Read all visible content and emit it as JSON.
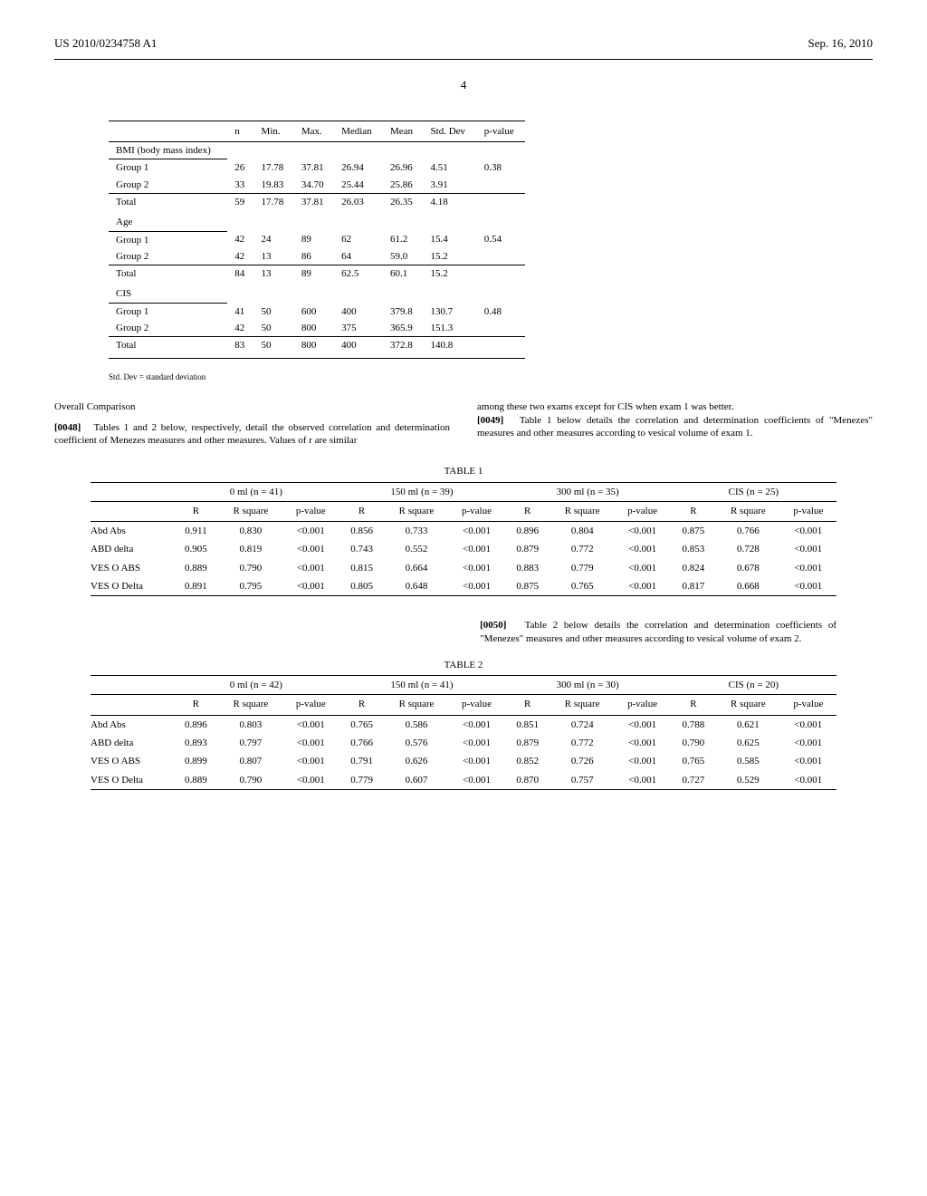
{
  "header": {
    "left": "US 2010/0234758 A1",
    "right": "Sep. 16, 2010"
  },
  "page_number": "4",
  "top_table": {
    "columns": [
      "",
      "n",
      "Min.",
      "Max.",
      "Median",
      "Mean",
      "Std. Dev",
      "p-value"
    ],
    "sections": [
      {
        "title": "BMI (body mass index)",
        "rows": [
          [
            "Group 1",
            "26",
            "17.78",
            "37.81",
            "26.94",
            "26.96",
            "4.51",
            "0.38"
          ],
          [
            "Group 2",
            "33",
            "19.83",
            "34.70",
            "25.44",
            "25.86",
            "3.91",
            ""
          ]
        ],
        "total": [
          "Total",
          "59",
          "17.78",
          "37.81",
          "26.03",
          "26.35",
          "4.18",
          ""
        ]
      },
      {
        "title": "Age",
        "rows": [
          [
            "Group 1",
            "42",
            "24",
            "89",
            "62",
            "61.2",
            "15.4",
            "0.54"
          ],
          [
            "Group 2",
            "42",
            "13",
            "86",
            "64",
            "59.0",
            "15.2",
            ""
          ]
        ],
        "total": [
          "Total",
          "84",
          "13",
          "89",
          "62.5",
          "60.1",
          "15.2",
          ""
        ]
      },
      {
        "title": "CIS",
        "rows": [
          [
            "Group 1",
            "41",
            "50",
            "600",
            "400",
            "379.8",
            "130.7",
            "0.48"
          ],
          [
            "Group 2",
            "42",
            "50",
            "800",
            "375",
            "365.9",
            "151.3",
            ""
          ]
        ],
        "total": [
          "Total",
          "83",
          "50",
          "800",
          "400",
          "372.8",
          "140.8",
          ""
        ]
      }
    ]
  },
  "footnote": "Std. Dev = standard deviation",
  "overall_heading": "Overall Comparison",
  "para_0048_num": "[0048]",
  "para_0048": "Tables 1 and 2 below, respectively, detail the observed correlation and determination coefficient of Menezes measures and other measures. Values of r are similar",
  "para_0048_right": "among these two exams except for CIS when exam 1 was better.",
  "para_0049_num": "[0049]",
  "para_0049": "Table 1 below details the correlation and determination coefficients of \"Menezes\" measures and other measures according to vesical volume of exam 1.",
  "table1_label": "TABLE 1",
  "table1": {
    "groups": [
      "0 ml (n = 41)",
      "150 ml (n = 39)",
      "300 ml (n = 35)",
      "CIS (n = 25)"
    ],
    "sub_headers": [
      "R",
      "R square",
      "p-value"
    ],
    "row_labels": [
      "Abd Abs",
      "ABD delta",
      "VES O ABS",
      "VES O Delta"
    ],
    "rows": [
      [
        "0.911",
        "0.830",
        "<0.001",
        "0.856",
        "0.733",
        "<0.001",
        "0.896",
        "0.804",
        "<0.001",
        "0.875",
        "0.766",
        "<0.001"
      ],
      [
        "0.905",
        "0.819",
        "<0.001",
        "0.743",
        "0.552",
        "<0.001",
        "0.879",
        "0.772",
        "<0.001",
        "0.853",
        "0.728",
        "<0.001"
      ],
      [
        "0.889",
        "0.790",
        "<0.001",
        "0.815",
        "0.664",
        "<0.001",
        "0.883",
        "0.779",
        "<0.001",
        "0.824",
        "0.678",
        "<0.001"
      ],
      [
        "0.891",
        "0.795",
        "<0.001",
        "0.805",
        "0.648",
        "<0.001",
        "0.875",
        "0.765",
        "<0.001",
        "0.817",
        "0.668",
        "<0.001"
      ]
    ]
  },
  "para_0050_num": "[0050]",
  "para_0050": "Table 2 below details the correlation and determination coefficients of \"Menezes\" measures and other measures according to vesical volume of exam 2.",
  "table2_label": "TABLE 2",
  "table2": {
    "groups": [
      "0 ml (n = 42)",
      "150 ml (n = 41)",
      "300 ml (n = 30)",
      "CIS (n = 20)"
    ],
    "sub_headers": [
      "R",
      "R square",
      "p-value"
    ],
    "row_labels": [
      "Abd Abs",
      "ABD delta",
      "VES O ABS",
      "VES O Delta"
    ],
    "rows": [
      [
        "0.896",
        "0.803",
        "<0.001",
        "0.765",
        "0.586",
        "<0.001",
        "0.851",
        "0.724",
        "<0.001",
        "0.788",
        "0.621",
        "<0.001"
      ],
      [
        "0.893",
        "0.797",
        "<0.001",
        "0.766",
        "0.576",
        "<0.001",
        "0.879",
        "0.772",
        "<0.001",
        "0.790",
        "0.625",
        "<0.001"
      ],
      [
        "0.899",
        "0.807",
        "<0.001",
        "0.791",
        "0.626",
        "<0.001",
        "0.852",
        "0.726",
        "<0.001",
        "0.765",
        "0.585",
        "<0.001"
      ],
      [
        "0.889",
        "0.790",
        "<0.001",
        "0.779",
        "0.607",
        "<0.001",
        "0.870",
        "0.757",
        "<0.001",
        "0.727",
        "0.529",
        "<0.001"
      ]
    ]
  }
}
